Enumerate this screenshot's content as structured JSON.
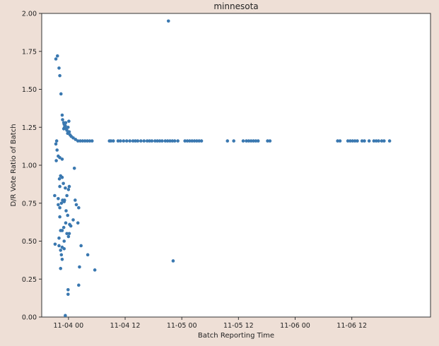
{
  "chart_data": {
    "type": "scatter",
    "title": "minnesota",
    "xlabel": "Batch Reporting Time",
    "ylabel": "D/R Vote Ratio of Batch",
    "ylim": [
      0,
      2
    ],
    "yticks": [
      "0.00",
      "0.25",
      "0.50",
      "0.75",
      "1.00",
      "1.25",
      "1.50",
      "1.75",
      "2.00"
    ],
    "xlim": [
      "2020-11-03 18:20",
      "2020-11-07 04:40"
    ],
    "xticks": [
      {
        "label": "11-04 00",
        "value": "2020-11-04 00:00"
      },
      {
        "label": "11-04 12",
        "value": "2020-11-04 12:00"
      },
      {
        "label": "11-05 00",
        "value": "2020-11-05 00:00"
      },
      {
        "label": "11-05 12",
        "value": "2020-11-05 12:00"
      },
      {
        "label": "11-06 00",
        "value": "2020-11-06 00:00"
      },
      {
        "label": "11-06 12",
        "value": "2020-11-06 12:00"
      }
    ],
    "grid": false,
    "marker_color": "#3a78b0",
    "series": [
      {
        "points": [
          [
            "2020-11-03 21:20",
            1.7
          ],
          [
            "2020-11-03 21:40",
            1.72
          ],
          [
            "2020-11-03 22:00",
            1.64
          ],
          [
            "2020-11-03 22:10",
            1.59
          ],
          [
            "2020-11-03 22:25",
            1.47
          ],
          [
            "2020-11-03 22:40",
            1.33
          ],
          [
            "2020-11-03 22:45",
            1.3
          ],
          [
            "2020-11-03 23:00",
            1.28
          ],
          [
            "2020-11-03 23:00",
            1.24
          ],
          [
            "2020-11-03 23:05",
            1.27
          ],
          [
            "2020-11-03 23:10",
            1.25
          ],
          [
            "2020-11-03 23:20",
            1.26
          ],
          [
            "2020-11-03 23:25",
            1.28
          ],
          [
            "2020-11-03 23:30",
            1.24
          ],
          [
            "2020-11-03 23:40",
            1.23
          ],
          [
            "2020-11-03 23:50",
            1.21
          ],
          [
            "2020-11-03 23:55",
            1.25
          ],
          [
            "2020-11-04 00:05",
            1.29
          ],
          [
            "2020-11-04 00:10",
            1.22
          ],
          [
            "2020-11-04 00:20",
            1.2
          ],
          [
            "2020-11-04 00:35",
            1.19
          ],
          [
            "2020-11-04 01:00",
            1.18
          ],
          [
            "2020-11-04 01:30",
            1.17
          ],
          [
            "2020-11-04 02:00",
            1.16
          ],
          [
            "2020-11-04 02:30",
            1.16
          ],
          [
            "2020-11-04 03:00",
            1.16
          ],
          [
            "2020-11-04 03:30",
            1.16
          ],
          [
            "2020-11-04 04:00",
            1.16
          ],
          [
            "2020-11-04 04:30",
            1.16
          ],
          [
            "2020-11-04 05:00",
            1.16
          ],
          [
            "2020-11-03 21:20",
            1.14
          ],
          [
            "2020-11-03 21:30",
            1.16
          ],
          [
            "2020-11-03 21:35",
            1.1
          ],
          [
            "2020-11-03 21:50",
            1.06
          ],
          [
            "2020-11-03 22:10",
            1.05
          ],
          [
            "2020-11-03 21:25",
            1.03
          ],
          [
            "2020-11-03 22:40",
            1.04
          ],
          [
            "2020-11-04 01:15",
            0.98
          ],
          [
            "2020-11-03 22:20",
            0.93
          ],
          [
            "2020-11-03 22:40",
            0.92
          ],
          [
            "2020-11-03 22:05",
            0.91
          ],
          [
            "2020-11-03 22:55",
            0.88
          ],
          [
            "2020-11-03 22:10",
            0.86
          ],
          [
            "2020-11-03 23:20",
            0.85
          ],
          [
            "2020-11-04 00:00",
            0.84
          ],
          [
            "2020-11-04 00:10",
            0.86
          ],
          [
            "2020-11-03 21:05",
            0.8
          ],
          [
            "2020-11-03 23:40",
            0.8
          ],
          [
            "2020-11-03 21:50",
            0.78
          ],
          [
            "2020-11-03 22:45",
            0.77
          ],
          [
            "2020-11-03 23:05",
            0.76
          ],
          [
            "2020-11-03 23:10",
            0.77
          ],
          [
            "2020-11-04 01:25",
            0.77
          ],
          [
            "2020-11-03 21:50",
            0.74
          ],
          [
            "2020-11-03 22:30",
            0.75
          ],
          [
            "2020-11-04 01:40",
            0.74
          ],
          [
            "2020-11-03 22:10",
            0.72
          ],
          [
            "2020-11-03 23:30",
            0.7
          ],
          [
            "2020-11-04 02:10",
            0.72
          ],
          [
            "2020-11-03 23:50",
            0.67
          ],
          [
            "2020-11-03 22:10",
            0.66
          ],
          [
            "2020-11-04 01:00",
            0.64
          ],
          [
            "2020-11-03 23:25",
            0.62
          ],
          [
            "2020-11-04 00:15",
            0.61
          ],
          [
            "2020-11-04 00:30",
            0.6
          ],
          [
            "2020-11-04 02:00",
            0.62
          ],
          [
            "2020-11-03 23:00",
            0.59
          ],
          [
            "2020-11-03 22:40",
            0.57
          ],
          [
            "2020-11-03 22:20",
            0.57
          ],
          [
            "2020-11-03 23:40",
            0.55
          ],
          [
            "2020-11-04 00:10",
            0.55
          ],
          [
            "2020-11-04 00:00",
            0.53
          ],
          [
            "2020-11-03 22:00",
            0.52
          ],
          [
            "2020-11-03 23:05",
            0.5
          ],
          [
            "2020-11-03 21:10",
            0.48
          ],
          [
            "2020-11-03 22:00",
            0.47
          ],
          [
            "2020-11-03 22:40",
            0.46
          ],
          [
            "2020-11-03 23:05",
            0.45
          ],
          [
            "2020-11-03 22:20",
            0.44
          ],
          [
            "2020-11-04 02:40",
            0.47
          ],
          [
            "2020-11-03 22:30",
            0.41
          ],
          [
            "2020-11-04 04:05",
            0.41
          ],
          [
            "2020-11-03 22:40",
            0.38
          ],
          [
            "2020-11-04 02:20",
            0.33
          ],
          [
            "2020-11-03 22:20",
            0.32
          ],
          [
            "2020-11-04 05:35",
            0.31
          ],
          [
            "2020-11-04 02:10",
            0.21
          ],
          [
            "2020-11-03 23:55",
            0.18
          ],
          [
            "2020-11-03 23:55",
            0.15
          ],
          [
            "2020-11-03 23:20",
            0.01
          ],
          [
            "2020-11-04 08:40",
            1.16
          ],
          [
            "2020-11-04 09:00",
            1.16
          ],
          [
            "2020-11-04 09:30",
            1.16
          ],
          [
            "2020-11-04 10:30",
            1.16
          ],
          [
            "2020-11-04 11:00",
            1.16
          ],
          [
            "2020-11-04 11:40",
            1.16
          ],
          [
            "2020-11-04 12:20",
            1.16
          ],
          [
            "2020-11-04 13:00",
            1.16
          ],
          [
            "2020-11-04 13:40",
            1.16
          ],
          [
            "2020-11-04 14:10",
            1.16
          ],
          [
            "2020-11-04 14:40",
            1.16
          ],
          [
            "2020-11-04 15:20",
            1.16
          ],
          [
            "2020-11-04 16:00",
            1.16
          ],
          [
            "2020-11-04 16:40",
            1.16
          ],
          [
            "2020-11-04 17:10",
            1.16
          ],
          [
            "2020-11-04 17:40",
            1.16
          ],
          [
            "2020-11-04 18:20",
            1.16
          ],
          [
            "2020-11-04 18:50",
            1.16
          ],
          [
            "2020-11-04 19:20",
            1.16
          ],
          [
            "2020-11-04 19:50",
            1.16
          ],
          [
            "2020-11-04 20:30",
            1.16
          ],
          [
            "2020-11-04 21:00",
            1.16
          ],
          [
            "2020-11-04 21:30",
            1.16
          ],
          [
            "2020-11-04 22:00",
            1.16
          ],
          [
            "2020-11-04 22:30",
            1.16
          ],
          [
            "2020-11-04 23:10",
            1.16
          ],
          [
            "2020-11-04 21:10",
            1.95
          ],
          [
            "2020-11-04 22:10",
            0.37
          ],
          [
            "2020-11-05 00:40",
            1.16
          ],
          [
            "2020-11-05 01:10",
            1.16
          ],
          [
            "2020-11-05 01:40",
            1.16
          ],
          [
            "2020-11-05 02:10",
            1.16
          ],
          [
            "2020-11-05 02:40",
            1.16
          ],
          [
            "2020-11-05 03:10",
            1.16
          ],
          [
            "2020-11-05 03:40",
            1.16
          ],
          [
            "2020-11-05 04:10",
            1.16
          ],
          [
            "2020-11-05 09:40",
            1.16
          ],
          [
            "2020-11-05 11:00",
            1.16
          ],
          [
            "2020-11-05 13:00",
            1.16
          ],
          [
            "2020-11-05 13:40",
            1.16
          ],
          [
            "2020-11-05 14:10",
            1.16
          ],
          [
            "2020-11-05 14:40",
            1.16
          ],
          [
            "2020-11-05 15:10",
            1.16
          ],
          [
            "2020-11-05 15:40",
            1.16
          ],
          [
            "2020-11-05 16:10",
            1.16
          ],
          [
            "2020-11-05 18:10",
            1.16
          ],
          [
            "2020-11-05 18:40",
            1.16
          ],
          [
            "2020-11-06 09:00",
            1.16
          ],
          [
            "2020-11-06 09:30",
            1.16
          ],
          [
            "2020-11-06 11:10",
            1.16
          ],
          [
            "2020-11-06 11:40",
            1.16
          ],
          [
            "2020-11-06 12:10",
            1.16
          ],
          [
            "2020-11-06 12:40",
            1.16
          ],
          [
            "2020-11-06 13:10",
            1.16
          ],
          [
            "2020-11-06 14:10",
            1.16
          ],
          [
            "2020-11-06 14:40",
            1.16
          ],
          [
            "2020-11-06 15:40",
            1.16
          ],
          [
            "2020-11-06 16:40",
            1.16
          ],
          [
            "2020-11-06 17:10",
            1.16
          ],
          [
            "2020-11-06 17:40",
            1.16
          ],
          [
            "2020-11-06 18:20",
            1.16
          ],
          [
            "2020-11-06 18:50",
            1.16
          ],
          [
            "2020-11-06 20:00",
            1.16
          ]
        ]
      }
    ]
  }
}
